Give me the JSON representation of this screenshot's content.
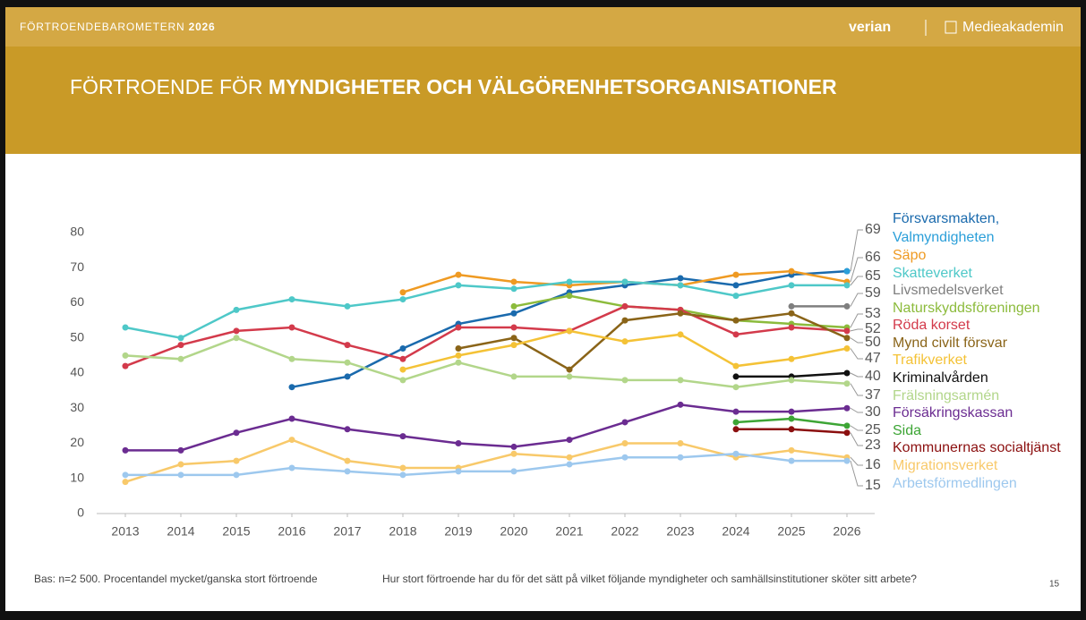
{
  "header": {
    "brand": "FÖRTROENDEBAROMETERN",
    "year": "2026",
    "logo_left": "verian",
    "logo_right": "Medieakademin"
  },
  "title": {
    "normal": "FÖRTROENDE FÖR",
    "bold": "MYNDIGHETER OCH VÄLGÖRENHETSORGANISATIONER"
  },
  "footer": {
    "base": "Bas: n=2 500. Procentandel mycket/ganska stort förtroende",
    "question": "Hur stort förtroende har du för det sätt på vilket följande myndigheter och samhällsinstitutioner sköter sitt arbete?",
    "page": "15"
  },
  "chart_data": {
    "type": "line",
    "x": [
      2013,
      2014,
      2015,
      2016,
      2017,
      2018,
      2019,
      2020,
      2021,
      2022,
      2023,
      2024,
      2025,
      2026
    ],
    "xlim": [
      2012.5,
      2026.5
    ],
    "xticks": [
      2013,
      2014,
      2015,
      2016,
      2017,
      2018,
      2019,
      2020,
      2021,
      2022,
      2023,
      2024,
      2025,
      2026
    ],
    "ylim": [
      0,
      80
    ],
    "yticks": [
      0,
      10,
      20,
      30,
      40,
      50,
      60,
      70,
      80
    ],
    "grid": false,
    "series": [
      {
        "name": "Försvarsmakten,",
        "color": "#1a6aad",
        "values": [
          null,
          null,
          null,
          36,
          39,
          47,
          54,
          57,
          63,
          65,
          67,
          65,
          68,
          69
        ]
      },
      {
        "name": "Valmyndigheten",
        "color": "#2b9fd9",
        "values": [
          null,
          null,
          null,
          null,
          null,
          null,
          null,
          null,
          null,
          null,
          null,
          null,
          null,
          69
        ]
      },
      {
        "name": "Säpo",
        "color": "#ef9a22",
        "values": [
          null,
          null,
          null,
          null,
          null,
          63,
          68,
          66,
          65,
          66,
          65,
          68,
          69,
          66
        ]
      },
      {
        "name": "Skatteverket",
        "color": "#4ec8c8",
        "values": [
          53,
          50,
          58,
          61,
          59,
          61,
          65,
          64,
          66,
          66,
          65,
          62,
          65,
          65
        ]
      },
      {
        "name": "Livsmedelsverket",
        "color": "#7f7f7f",
        "values": [
          null,
          null,
          null,
          null,
          null,
          null,
          null,
          null,
          null,
          null,
          null,
          null,
          59,
          59
        ]
      },
      {
        "name": "Naturskyddsföreningen",
        "color": "#8cbb3c",
        "values": [
          null,
          null,
          null,
          null,
          null,
          null,
          null,
          59,
          62,
          59,
          58,
          55,
          54,
          53
        ]
      },
      {
        "name": "Röda korset",
        "color": "#d33a4b",
        "values": [
          42,
          48,
          52,
          53,
          48,
          44,
          53,
          53,
          52,
          59,
          58,
          51,
          53,
          52
        ]
      },
      {
        "name": "Mynd civilt försvar",
        "color": "#8a6418",
        "values": [
          null,
          null,
          null,
          null,
          null,
          null,
          47,
          50,
          41,
          55,
          57,
          55,
          57,
          50
        ]
      },
      {
        "name": "Trafikverket",
        "color": "#f4c236",
        "values": [
          null,
          null,
          null,
          null,
          null,
          41,
          45,
          48,
          52,
          49,
          51,
          42,
          44,
          47
        ]
      },
      {
        "name": "Kriminalvården",
        "color": "#111111",
        "values": [
          null,
          null,
          null,
          null,
          null,
          null,
          null,
          null,
          null,
          null,
          null,
          39,
          39,
          40
        ]
      },
      {
        "name": "Frälsningsarmén",
        "color": "#b2d68a",
        "values": [
          45,
          44,
          50,
          44,
          43,
          38,
          43,
          39,
          39,
          38,
          38,
          36,
          38,
          37
        ]
      },
      {
        "name": "Försäkringskassan",
        "color": "#6b2c91",
        "values": [
          18,
          18,
          23,
          27,
          24,
          22,
          20,
          19,
          21,
          26,
          31,
          29,
          29,
          30
        ]
      },
      {
        "name": "Sida",
        "color": "#3da535",
        "values": [
          null,
          null,
          null,
          null,
          null,
          null,
          null,
          null,
          null,
          null,
          null,
          26,
          27,
          25
        ]
      },
      {
        "name": "Kommunernas socialtjänst",
        "color": "#8b0f0f",
        "values": [
          null,
          null,
          null,
          null,
          null,
          null,
          null,
          null,
          null,
          null,
          null,
          24,
          24,
          23
        ]
      },
      {
        "name": "Migrationsverket",
        "color": "#f8c96a",
        "values": [
          9,
          14,
          15,
          21,
          15,
          13,
          13,
          17,
          16,
          20,
          20,
          16,
          18,
          16
        ]
      },
      {
        "name": "Arbetsförmedlingen",
        "color": "#9dc8ee",
        "values": [
          11,
          11,
          11,
          13,
          12,
          11,
          12,
          12,
          14,
          16,
          16,
          17,
          15,
          15
        ]
      }
    ]
  }
}
